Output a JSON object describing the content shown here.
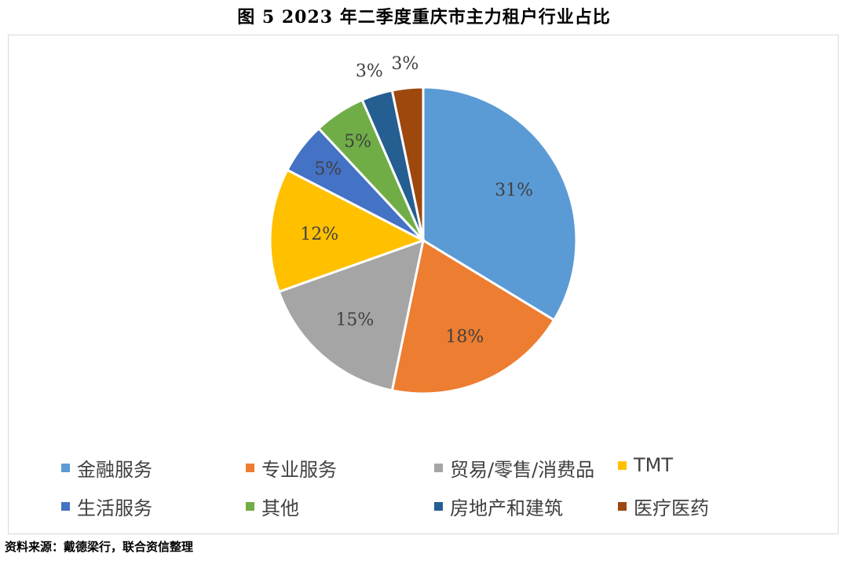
{
  "chart_data": {
    "type": "pie",
    "title": "图 5   2023 年二季度重庆市主力租户行业占比",
    "slices": [
      {
        "label": "金融服务",
        "value": 31,
        "display": "31%",
        "color": "#5B9BD5"
      },
      {
        "label": "专业服务",
        "value": 18,
        "display": "18%",
        "color": "#ED7D31"
      },
      {
        "label": "贸易/零售/消费品",
        "value": 15,
        "display": "15%",
        "color": "#A5A5A5"
      },
      {
        "label": "TMT",
        "value": 12,
        "display": "12%",
        "color": "#FFC000"
      },
      {
        "label": "生活服务",
        "value": 5,
        "display": "5%",
        "color": "#4472C4"
      },
      {
        "label": "其他",
        "value": 5,
        "display": "5%",
        "color": "#70AD47"
      },
      {
        "label": "房地产和建筑",
        "value": 3,
        "display": "3%",
        "color": "#255E91"
      },
      {
        "label": "医疗医药",
        "value": 3,
        "display": "3%",
        "color": "#9E480E"
      }
    ],
    "legend_position": "bottom"
  },
  "source": "资料来源：戴德梁行，联合资信整理"
}
